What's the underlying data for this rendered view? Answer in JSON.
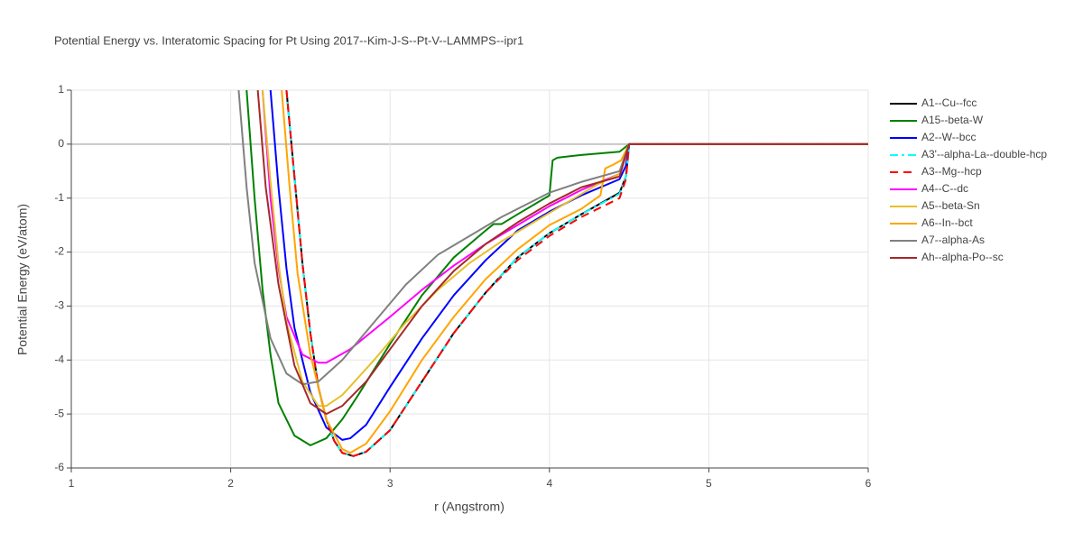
{
  "chart_data": {
    "type": "line",
    "title": "Potential Energy vs. Interatomic Spacing for Pt Using 2017--Kim-J-S--Pt-V--LAMMPS--ipr1",
    "x_label": "r (Angstrom)",
    "y_label": "Potential Energy (eV/atom)",
    "xlim": [
      1,
      6
    ],
    "ylim": [
      -6,
      1
    ],
    "xticks": [
      1,
      2,
      3,
      4,
      5,
      6
    ],
    "yticks": [
      -6,
      -5,
      -4,
      -3,
      -2,
      -1,
      0,
      1
    ],
    "grid": true,
    "legend": "right",
    "series": [
      {
        "name": "A1--Cu--fcc",
        "color": "#000000",
        "dash": "solid",
        "x": [
          2.35,
          2.4,
          2.45,
          2.5,
          2.55,
          2.6,
          2.65,
          2.7,
          2.77,
          2.85,
          3.0,
          3.2,
          3.4,
          3.6,
          3.8,
          4.0,
          4.2,
          4.44,
          4.48,
          4.5,
          5,
          6
        ],
        "values": [
          1,
          -0.6,
          -2.2,
          -3.5,
          -4.5,
          -5.1,
          -5.5,
          -5.72,
          -5.78,
          -5.7,
          -5.3,
          -4.4,
          -3.5,
          -2.75,
          -2.1,
          -1.65,
          -1.3,
          -0.9,
          -0.6,
          0,
          0,
          0
        ]
      },
      {
        "name": "A15--beta-W",
        "color": "#008000",
        "dash": "solid",
        "x": [
          2.1,
          2.15,
          2.2,
          2.25,
          2.3,
          2.4,
          2.5,
          2.6,
          2.7,
          2.8,
          3.0,
          3.2,
          3.4,
          3.6,
          3.65,
          3.7,
          3.8,
          4.0,
          4.02,
          4.05,
          4.2,
          4.44,
          4.5,
          5,
          6
        ],
        "values": [
          1,
          -1,
          -2.7,
          -3.9,
          -4.8,
          -5.4,
          -5.58,
          -5.45,
          -5.1,
          -4.65,
          -3.7,
          -2.8,
          -2.1,
          -1.6,
          -1.48,
          -1.48,
          -1.3,
          -0.95,
          -0.3,
          -0.25,
          -0.2,
          -0.14,
          0,
          0,
          0
        ]
      },
      {
        "name": "A2--W--bcc",
        "color": "#0000ff",
        "dash": "solid",
        "x": [
          2.25,
          2.3,
          2.35,
          2.4,
          2.5,
          2.6,
          2.7,
          2.75,
          2.85,
          3.0,
          3.2,
          3.4,
          3.6,
          3.8,
          4.0,
          4.2,
          4.44,
          4.48,
          4.5,
          5,
          6
        ],
        "values": [
          1,
          -0.8,
          -2.3,
          -3.4,
          -4.6,
          -5.25,
          -5.48,
          -5.45,
          -5.2,
          -4.5,
          -3.6,
          -2.8,
          -2.15,
          -1.6,
          -1.25,
          -0.95,
          -0.65,
          -0.4,
          0,
          0,
          0
        ]
      },
      {
        "name": "A3'--alpha-La--double-hcp",
        "color": "#00ffff",
        "dash": "dashdot",
        "x": [
          2.35,
          2.4,
          2.45,
          2.5,
          2.55,
          2.6,
          2.65,
          2.7,
          2.77,
          2.85,
          3.0,
          3.2,
          3.4,
          3.6,
          3.8,
          4.0,
          4.2,
          4.44,
          4.48,
          4.5,
          5,
          6
        ],
        "values": [
          1,
          -0.6,
          -2.2,
          -3.5,
          -4.5,
          -5.1,
          -5.5,
          -5.72,
          -5.78,
          -5.7,
          -5.3,
          -4.4,
          -3.5,
          -2.75,
          -2.1,
          -1.65,
          -1.3,
          -0.92,
          -0.6,
          0,
          0,
          0
        ]
      },
      {
        "name": "A3--Mg--hcp",
        "color": "#ff0000",
        "dash": "dash",
        "x": [
          2.35,
          2.4,
          2.45,
          2.5,
          2.55,
          2.6,
          2.65,
          2.7,
          2.77,
          2.85,
          3.0,
          3.2,
          3.4,
          3.6,
          3.8,
          4.0,
          4.2,
          4.44,
          4.48,
          4.5,
          5,
          6
        ],
        "values": [
          1,
          -0.6,
          -2.2,
          -3.5,
          -4.5,
          -5.1,
          -5.5,
          -5.72,
          -5.78,
          -5.7,
          -5.3,
          -4.4,
          -3.5,
          -2.75,
          -2.15,
          -1.7,
          -1.35,
          -1.0,
          -0.65,
          0,
          0,
          0
        ]
      },
      {
        "name": "A4--C--dc",
        "color": "#ff00ff",
        "dash": "solid",
        "x": [
          2.2,
          2.25,
          2.3,
          2.35,
          2.45,
          2.55,
          2.6,
          2.75,
          3.0,
          3.2,
          3.4,
          3.6,
          3.8,
          4.0,
          4.2,
          4.44,
          4.5,
          5,
          6
        ],
        "values": [
          1,
          -1,
          -2.3,
          -3.2,
          -3.9,
          -4.05,
          -4.05,
          -3.8,
          -3.2,
          -2.7,
          -2.25,
          -1.85,
          -1.5,
          -1.15,
          -0.85,
          -0.55,
          0,
          0,
          0
        ]
      },
      {
        "name": "A5--beta-Sn",
        "color": "#e6c12a",
        "dash": "solid",
        "x": [
          2.2,
          2.25,
          2.3,
          2.35,
          2.45,
          2.55,
          2.6,
          2.7,
          2.9,
          3.1,
          3.3,
          3.5,
          3.7,
          3.9,
          4.1,
          4.3,
          4.44,
          4.5,
          5,
          6
        ],
        "values": [
          1,
          -0.7,
          -2.2,
          -3.3,
          -4.4,
          -4.85,
          -4.85,
          -4.65,
          -4.0,
          -3.3,
          -2.7,
          -2.2,
          -1.8,
          -1.45,
          -1.1,
          -0.75,
          -0.55,
          0,
          0,
          0
        ]
      },
      {
        "name": "A6--In--bct",
        "color": "#ffa500",
        "dash": "solid",
        "x": [
          2.32,
          2.37,
          2.42,
          2.5,
          2.6,
          2.7,
          2.75,
          2.85,
          3.0,
          3.2,
          3.4,
          3.6,
          3.8,
          4.0,
          4.2,
          4.32,
          4.35,
          4.4,
          4.45,
          4.5,
          5,
          6
        ],
        "values": [
          1,
          -0.8,
          -2.4,
          -3.9,
          -5.1,
          -5.65,
          -5.72,
          -5.55,
          -4.95,
          -4.0,
          -3.2,
          -2.5,
          -1.95,
          -1.5,
          -1.2,
          -0.95,
          -0.45,
          -0.38,
          -0.3,
          0,
          0,
          0
        ]
      },
      {
        "name": "A7--alpha-As",
        "color": "#808080",
        "dash": "solid",
        "x": [
          2.05,
          2.1,
          2.15,
          2.25,
          2.35,
          2.45,
          2.55,
          2.7,
          2.9,
          3.1,
          3.3,
          3.5,
          3.7,
          4.0,
          4.2,
          4.44,
          4.5,
          5,
          6
        ],
        "values": [
          1,
          -0.8,
          -2.2,
          -3.6,
          -4.25,
          -4.45,
          -4.4,
          -4.0,
          -3.3,
          -2.6,
          -2.05,
          -1.7,
          -1.35,
          -0.9,
          -0.7,
          -0.5,
          0,
          0,
          0
        ]
      },
      {
        "name": "Ah--alpha-Po--sc",
        "color": "#a52a2a",
        "dash": "solid",
        "x": [
          2.17,
          2.22,
          2.3,
          2.4,
          2.5,
          2.6,
          2.7,
          2.85,
          3.0,
          3.2,
          3.4,
          3.6,
          3.8,
          4.0,
          4.2,
          4.44,
          4.5,
          5,
          6
        ],
        "values": [
          1,
          -0.8,
          -2.6,
          -4.1,
          -4.8,
          -5.0,
          -4.85,
          -4.4,
          -3.8,
          -3.0,
          -2.35,
          -1.85,
          -1.45,
          -1.1,
          -0.8,
          -0.6,
          0,
          0,
          0
        ]
      }
    ]
  }
}
